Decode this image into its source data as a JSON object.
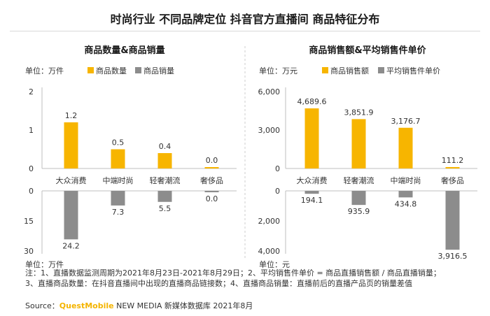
{
  "page_title": "时尚行业 不同品牌定位 抖音官方直播间 商品特征分布",
  "notes": {
    "line1": "注：1、直播数据监测周期为2021年8月23日-2021年8月29日；2、平均销售件单价 = 商品直播销售额 / 商品直播销量；",
    "line2": "3、直播商品数量：在抖音直播间中出现的直播商品链接数；4、直播商品销量：直播前后的直播产品页的销量差值"
  },
  "source": {
    "prefix": "Source：",
    "brand": "QuestMobile",
    "rest": " NEW MEDIA 新媒体数据库 2021年8月"
  },
  "chart_data": [
    {
      "type": "bar",
      "title": "商品数量&商品销量",
      "unit_label": "单位：万件",
      "bottom_unit_label": "单位：万件",
      "categories": [
        "大众消费",
        "中端时尚",
        "轻奢潮流",
        "奢侈品"
      ],
      "top": {
        "series_name": "商品数量",
        "values": [
          1.2,
          0.5,
          0.4,
          0.0
        ],
        "labels": [
          "1.2",
          "0.5",
          "0.4",
          "0.0"
        ],
        "ylim": [
          0,
          2
        ],
        "ticks": [
          0,
          1,
          2
        ],
        "tick_labels": [
          "0",
          "1",
          "2"
        ]
      },
      "bottom": {
        "series_name": "商品销量",
        "values": [
          24.2,
          7.3,
          5.5,
          0.0
        ],
        "labels": [
          "24.2",
          "7.3",
          "5.5",
          "0.0"
        ],
        "ylim": [
          0,
          30
        ],
        "ticks": [
          0,
          15,
          30
        ],
        "tick_labels": [
          "0",
          "15",
          "30"
        ],
        "inverted": true
      }
    },
    {
      "type": "bar",
      "title": "商品销售额&平均销售件单价",
      "unit_label": "单位：万元",
      "bottom_unit_label": "单位：元",
      "categories": [
        "大众消费",
        "轻奢潮流",
        "中端时尚",
        "奢侈品"
      ],
      "top": {
        "series_name": "商品销售额",
        "values": [
          4689.6,
          3851.9,
          3176.7,
          111.2
        ],
        "labels": [
          "4,689.6",
          "3,851.9",
          "3,176.7",
          "111.2"
        ],
        "ylim": [
          0,
          6000
        ],
        "ticks": [
          0,
          3000,
          6000
        ],
        "tick_labels": [
          "0",
          "3,000",
          "6,000"
        ]
      },
      "bottom": {
        "series_name": "平均销售件单价",
        "values": [
          194.1,
          935.9,
          434.8,
          3916.5
        ],
        "labels": [
          "194.1",
          "935.9",
          "434.8",
          "3,916.5"
        ],
        "ylim": [
          0,
          4000
        ],
        "ticks": [
          0,
          2000,
          4000
        ],
        "tick_labels": [
          "0",
          "2,000",
          "4,000"
        ],
        "inverted": true
      }
    }
  ],
  "colors": {
    "top_series": "#f7b500",
    "bottom_series": "#8c8c8c",
    "axis": "#bfbfbf",
    "divider": "#cccccc"
  }
}
